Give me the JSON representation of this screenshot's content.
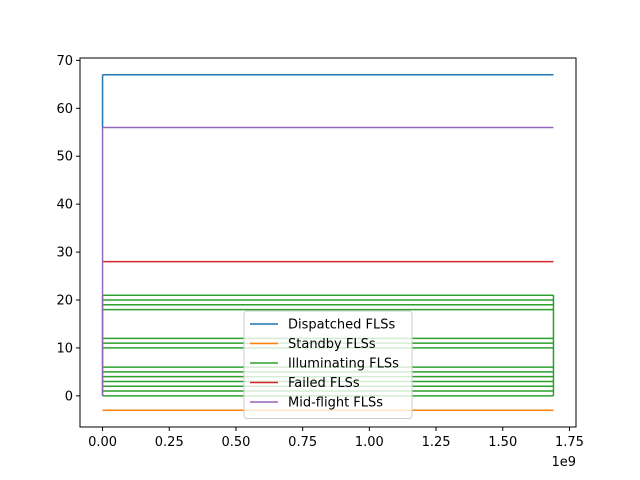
{
  "chart_data": {
    "type": "line",
    "title": "",
    "xlabel": "",
    "ylabel": "",
    "x_offset_label": "1e9",
    "xlim": [
      -0.0845,
      1.7745
    ],
    "ylim": [
      -6.5,
      70.5
    ],
    "x_ticks": [
      0.0,
      0.25,
      0.5,
      0.75,
      1.0,
      1.25,
      1.5,
      1.75
    ],
    "x_tick_labels": [
      "0.00",
      "0.25",
      "0.50",
      "0.75",
      "1.00",
      "1.25",
      "1.50",
      "1.75"
    ],
    "y_ticks": [
      0,
      10,
      20,
      30,
      40,
      50,
      60,
      70
    ],
    "y_tick_labels": [
      "0",
      "10",
      "20",
      "30",
      "40",
      "50",
      "60",
      "70"
    ],
    "legend_position": "lower center",
    "grid": false,
    "series": [
      {
        "name": "Dispatched FLSs",
        "color": "#1f77b4",
        "step_levels": [
          67
        ],
        "x_start": 0.0,
        "x_end": 1.69,
        "y_start_vertical": 56
      },
      {
        "name": "Standby FLSs",
        "color": "#ff7f0e",
        "step_levels": [
          -3
        ],
        "x_start": 0.0,
        "x_end": 1.69,
        "y_start_vertical": 0
      },
      {
        "name": "Illuminating FLSs",
        "color": "#2ca02c",
        "step_levels": [
          0,
          1,
          2,
          3,
          4,
          5,
          6,
          10,
          11,
          12,
          18,
          19,
          20,
          21
        ],
        "x_start": 0.0,
        "x_end": 1.69,
        "y_start_vertical": 0
      },
      {
        "name": "Failed FLSs",
        "color": "#d62728",
        "step_levels": [
          28
        ],
        "x_start": 0.0,
        "x_end": 1.69,
        "y_start_vertical": 28
      },
      {
        "name": "Mid-flight FLSs",
        "color": "#9467bd",
        "step_levels": [
          56
        ],
        "x_start": 0.0,
        "x_end": 1.69,
        "y_start_vertical": 0
      }
    ]
  }
}
